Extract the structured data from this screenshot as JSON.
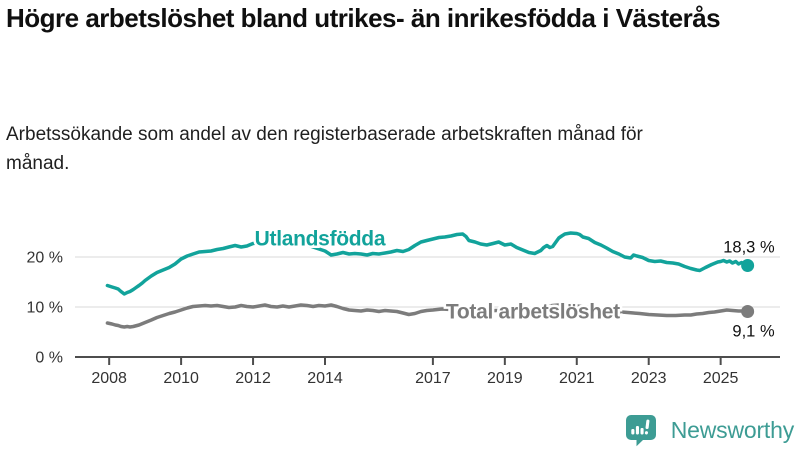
{
  "header": {
    "title": "Högre arbetslöshet bland utrikes- än inrikesfödda i Västerås",
    "subtitle": "Arbetssökande som andel av den registerbaserade arbetskraften månad för månad."
  },
  "branding": {
    "logo_text": "Newsworthy",
    "logo_color": "#3d9c94",
    "logo_icon": "bar-chart-speech-bubble-icon"
  },
  "colors": {
    "foreign_born_line": "#12a39b",
    "total_line": "#7c7c7c",
    "grid": "#d8d8d8",
    "axis": "#4d4d4d",
    "tick_label": "#333333",
    "value_label": "#111111"
  },
  "chart_data": {
    "type": "line",
    "title": "Arbetssökande som andel av den registerbaserade arbetskraften månad för månad",
    "xlabel": "",
    "ylabel": "",
    "grid": "horizontal",
    "xlim": [
      2007.05,
      2026.65
    ],
    "ylim": [
      0,
      30.4
    ],
    "x_ticks": [
      {
        "value": 2008,
        "label": "2008"
      },
      {
        "value": 2010,
        "label": "2010"
      },
      {
        "value": 2012,
        "label": "2012"
      },
      {
        "value": 2014,
        "label": "2014"
      },
      {
        "value": 2017,
        "label": "2017"
      },
      {
        "value": 2019,
        "label": "2019"
      },
      {
        "value": 2021,
        "label": "2021"
      },
      {
        "value": 2023,
        "label": "2023"
      },
      {
        "value": 2025,
        "label": "2025"
      }
    ],
    "y_ticks": [
      {
        "value": 0,
        "label": "0 %"
      },
      {
        "value": 10,
        "label": "10 %"
      },
      {
        "value": 20,
        "label": "20 %"
      }
    ],
    "series": [
      {
        "name": "Total arbetslöshet",
        "color": "#7c7c7c",
        "end_label": "9,1 %",
        "end_value": 9.1,
        "end_label_position": "below",
        "label_at": [
          2019.78,
          8.8
        ],
        "points": [
          [
            2007.95,
            6.8
          ],
          [
            2008.08,
            6.6
          ],
          [
            2008.17,
            6.4
          ],
          [
            2008.25,
            6.3
          ],
          [
            2008.33,
            6.1
          ],
          [
            2008.42,
            6.0
          ],
          [
            2008.5,
            6.1
          ],
          [
            2008.58,
            6.0
          ],
          [
            2008.67,
            6.1
          ],
          [
            2008.83,
            6.4
          ],
          [
            2009.0,
            6.9
          ],
          [
            2009.17,
            7.4
          ],
          [
            2009.33,
            7.9
          ],
          [
            2009.5,
            8.3
          ],
          [
            2009.67,
            8.7
          ],
          [
            2009.83,
            9.0
          ],
          [
            2010.0,
            9.4
          ],
          [
            2010.17,
            9.8
          ],
          [
            2010.33,
            10.1
          ],
          [
            2010.5,
            10.2
          ],
          [
            2010.67,
            10.3
          ],
          [
            2010.83,
            10.2
          ],
          [
            2011.0,
            10.3
          ],
          [
            2011.17,
            10.1
          ],
          [
            2011.33,
            9.9
          ],
          [
            2011.5,
            10.0
          ],
          [
            2011.67,
            10.3
          ],
          [
            2011.83,
            10.1
          ],
          [
            2012.0,
            10.0
          ],
          [
            2012.17,
            10.2
          ],
          [
            2012.33,
            10.4
          ],
          [
            2012.5,
            10.1
          ],
          [
            2012.67,
            10.0
          ],
          [
            2012.83,
            10.2
          ],
          [
            2013.0,
            10.0
          ],
          [
            2013.17,
            10.2
          ],
          [
            2013.33,
            10.4
          ],
          [
            2013.5,
            10.3
          ],
          [
            2013.67,
            10.1
          ],
          [
            2013.83,
            10.3
          ],
          [
            2014.0,
            10.2
          ],
          [
            2014.17,
            10.4
          ],
          [
            2014.33,
            10.1
          ],
          [
            2014.5,
            9.7
          ],
          [
            2014.67,
            9.4
          ],
          [
            2014.83,
            9.3
          ],
          [
            2015.0,
            9.2
          ],
          [
            2015.17,
            9.4
          ],
          [
            2015.33,
            9.3
          ],
          [
            2015.5,
            9.1
          ],
          [
            2015.67,
            9.3
          ],
          [
            2015.83,
            9.2
          ],
          [
            2016.0,
            9.1
          ],
          [
            2016.17,
            8.8
          ],
          [
            2016.33,
            8.5
          ],
          [
            2016.5,
            8.7
          ],
          [
            2016.67,
            9.1
          ],
          [
            2016.83,
            9.3
          ],
          [
            2017.0,
            9.4
          ],
          [
            2017.25,
            9.6
          ],
          [
            2017.5,
            9.5
          ],
          [
            2017.75,
            9.4
          ],
          [
            2018.0,
            9.4
          ],
          [
            2018.25,
            9.3
          ],
          [
            2018.5,
            9.2
          ],
          [
            2018.75,
            9.3
          ],
          [
            2019.0,
            9.3
          ],
          [
            2019.25,
            9.4
          ],
          [
            2019.5,
            9.3
          ],
          [
            2019.75,
            9.4
          ],
          [
            2020.0,
            9.7
          ],
          [
            2020.17,
            10.1
          ],
          [
            2020.33,
            10.3
          ],
          [
            2020.5,
            10.4
          ],
          [
            2020.67,
            10.4
          ],
          [
            2020.83,
            10.3
          ],
          [
            2021.0,
            10.2
          ],
          [
            2021.25,
            10.0
          ],
          [
            2021.5,
            9.8
          ],
          [
            2021.75,
            9.5
          ],
          [
            2022.0,
            9.3
          ],
          [
            2022.25,
            9.0
          ],
          [
            2022.42,
            8.9
          ],
          [
            2022.58,
            8.8
          ],
          [
            2022.75,
            8.7
          ],
          [
            2023.0,
            8.5
          ],
          [
            2023.25,
            8.4
          ],
          [
            2023.5,
            8.3
          ],
          [
            2023.75,
            8.3
          ],
          [
            2024.0,
            8.4
          ],
          [
            2024.17,
            8.4
          ],
          [
            2024.33,
            8.6
          ],
          [
            2024.5,
            8.7
          ],
          [
            2024.67,
            8.9
          ],
          [
            2024.83,
            9.0
          ],
          [
            2025.0,
            9.2
          ],
          [
            2025.17,
            9.4
          ],
          [
            2025.33,
            9.3
          ],
          [
            2025.5,
            9.2
          ],
          [
            2025.67,
            9.2
          ],
          [
            2025.75,
            9.1
          ]
        ]
      },
      {
        "name": "Utlandsfödda",
        "color": "#12a39b",
        "end_label": "18,3 %",
        "end_value": 18.3,
        "end_label_position": "above",
        "label_at": [
          2013.86,
          23.4
        ],
        "points": [
          [
            2007.95,
            14.3
          ],
          [
            2008.08,
            14.0
          ],
          [
            2008.17,
            13.8
          ],
          [
            2008.25,
            13.6
          ],
          [
            2008.33,
            13.1
          ],
          [
            2008.42,
            12.6
          ],
          [
            2008.5,
            12.9
          ],
          [
            2008.58,
            13.1
          ],
          [
            2008.67,
            13.5
          ],
          [
            2008.75,
            13.9
          ],
          [
            2008.83,
            14.3
          ],
          [
            2008.92,
            14.8
          ],
          [
            2009.0,
            15.3
          ],
          [
            2009.17,
            16.2
          ],
          [
            2009.33,
            16.9
          ],
          [
            2009.5,
            17.4
          ],
          [
            2009.67,
            17.9
          ],
          [
            2009.83,
            18.6
          ],
          [
            2010.0,
            19.6
          ],
          [
            2010.17,
            20.2
          ],
          [
            2010.33,
            20.6
          ],
          [
            2010.5,
            21.0
          ],
          [
            2010.67,
            21.1
          ],
          [
            2010.83,
            21.2
          ],
          [
            2011.0,
            21.5
          ],
          [
            2011.17,
            21.7
          ],
          [
            2011.33,
            22.0
          ],
          [
            2011.5,
            22.3
          ],
          [
            2011.67,
            22.0
          ],
          [
            2011.83,
            22.2
          ],
          [
            2012.0,
            22.7
          ],
          [
            2012.25,
            22.9
          ],
          [
            2012.5,
            23.1
          ],
          [
            2012.75,
            22.9
          ],
          [
            2013.0,
            23.0
          ],
          [
            2013.25,
            22.8
          ],
          [
            2013.5,
            22.4
          ],
          [
            2013.75,
            21.8
          ],
          [
            2014.0,
            21.2
          ],
          [
            2014.17,
            20.4
          ],
          [
            2014.33,
            20.6
          ],
          [
            2014.5,
            20.9
          ],
          [
            2014.67,
            20.6
          ],
          [
            2014.83,
            20.7
          ],
          [
            2015.0,
            20.6
          ],
          [
            2015.17,
            20.4
          ],
          [
            2015.33,
            20.7
          ],
          [
            2015.5,
            20.6
          ],
          [
            2015.67,
            20.8
          ],
          [
            2015.83,
            21.0
          ],
          [
            2016.0,
            21.3
          ],
          [
            2016.17,
            21.1
          ],
          [
            2016.33,
            21.5
          ],
          [
            2016.5,
            22.3
          ],
          [
            2016.67,
            23.0
          ],
          [
            2016.83,
            23.3
          ],
          [
            2017.0,
            23.6
          ],
          [
            2017.17,
            23.9
          ],
          [
            2017.33,
            24.0
          ],
          [
            2017.5,
            24.2
          ],
          [
            2017.67,
            24.5
          ],
          [
            2017.83,
            24.6
          ],
          [
            2017.92,
            24.1
          ],
          [
            2018.0,
            23.3
          ],
          [
            2018.17,
            23.0
          ],
          [
            2018.33,
            22.6
          ],
          [
            2018.5,
            22.4
          ],
          [
            2018.67,
            22.7
          ],
          [
            2018.83,
            23.0
          ],
          [
            2019.0,
            22.4
          ],
          [
            2019.17,
            22.6
          ],
          [
            2019.33,
            21.9
          ],
          [
            2019.5,
            21.4
          ],
          [
            2019.67,
            20.9
          ],
          [
            2019.83,
            20.7
          ],
          [
            2020.0,
            21.3
          ],
          [
            2020.08,
            21.9
          ],
          [
            2020.17,
            22.3
          ],
          [
            2020.25,
            21.9
          ],
          [
            2020.33,
            22.1
          ],
          [
            2020.5,
            23.8
          ],
          [
            2020.58,
            24.2
          ],
          [
            2020.67,
            24.6
          ],
          [
            2020.83,
            24.8
          ],
          [
            2021.0,
            24.7
          ],
          [
            2021.08,
            24.5
          ],
          [
            2021.17,
            24.0
          ],
          [
            2021.33,
            23.7
          ],
          [
            2021.5,
            22.9
          ],
          [
            2021.67,
            22.4
          ],
          [
            2021.83,
            21.8
          ],
          [
            2022.0,
            21.1
          ],
          [
            2022.17,
            20.6
          ],
          [
            2022.33,
            20.0
          ],
          [
            2022.5,
            19.8
          ],
          [
            2022.58,
            20.4
          ],
          [
            2022.67,
            20.2
          ],
          [
            2022.83,
            19.9
          ],
          [
            2023.0,
            19.3
          ],
          [
            2023.17,
            19.1
          ],
          [
            2023.33,
            19.2
          ],
          [
            2023.5,
            18.9
          ],
          [
            2023.67,
            18.8
          ],
          [
            2023.83,
            18.6
          ],
          [
            2024.0,
            18.1
          ],
          [
            2024.17,
            17.7
          ],
          [
            2024.33,
            17.4
          ],
          [
            2024.42,
            17.3
          ],
          [
            2024.58,
            17.9
          ],
          [
            2024.75,
            18.5
          ],
          [
            2024.92,
            19.0
          ],
          [
            2025.0,
            19.1
          ],
          [
            2025.08,
            19.3
          ],
          [
            2025.17,
            19.0
          ],
          [
            2025.25,
            19.2
          ],
          [
            2025.33,
            18.8
          ],
          [
            2025.42,
            19.1
          ],
          [
            2025.5,
            18.6
          ],
          [
            2025.58,
            18.9
          ],
          [
            2025.67,
            18.5
          ],
          [
            2025.75,
            18.3
          ]
        ]
      }
    ]
  }
}
